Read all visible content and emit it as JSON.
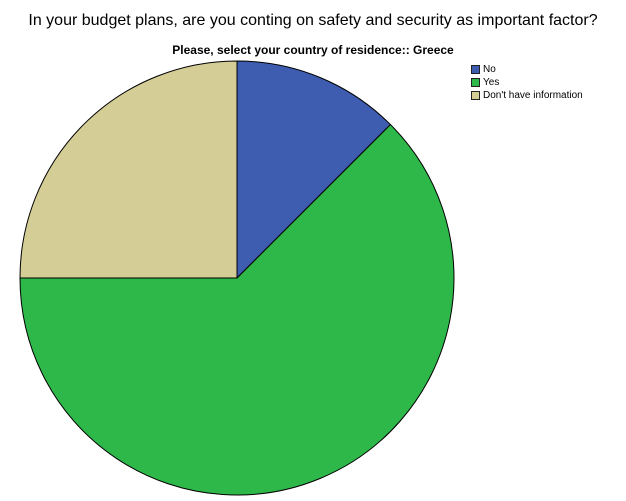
{
  "chart_data": {
    "type": "pie",
    "title": "In your budget plans, are you conting on safety and security as important factor?",
    "subtitle": "Please, select your country of residence:: Greece",
    "legend_position": "top-right",
    "slices": [
      {
        "label": "No",
        "value": 12.5,
        "color": "#3e5cb0"
      },
      {
        "label": "Yes",
        "value": 62.5,
        "color": "#2eb84a"
      },
      {
        "label": "Don't have information",
        "value": 25.0,
        "color": "#d4cd96"
      }
    ]
  }
}
